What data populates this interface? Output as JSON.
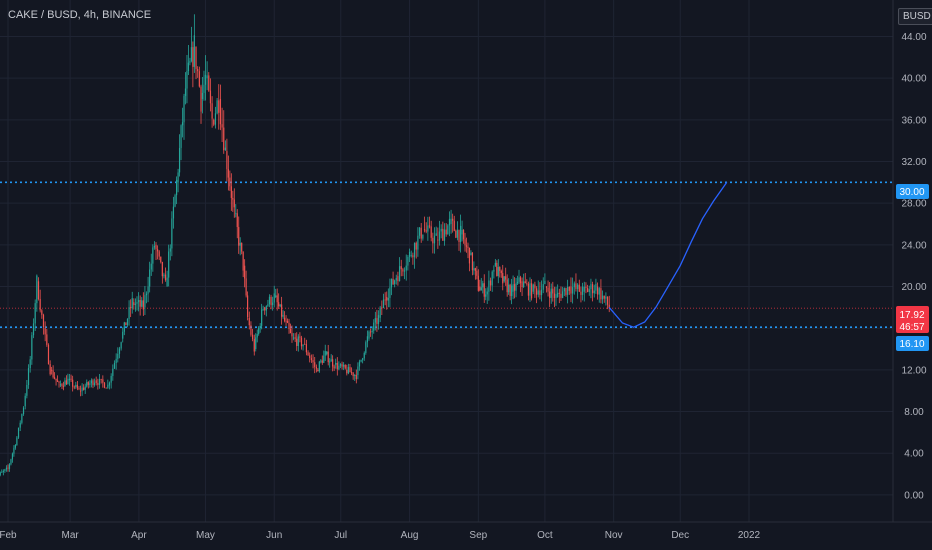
{
  "header": {
    "title": "CAKE / BUSD, 4h, BINANCE",
    "currency_button": "BUSD"
  },
  "price_labels": {
    "last_price": "17.92",
    "countdown": "46:57",
    "resistance": "30.00",
    "support": "16.10"
  },
  "colors": {
    "background": "#131722",
    "grid": "#1f2433",
    "up_candle": "#26a69a",
    "down_candle": "#ef5350",
    "horizontal_line": "#2196f3",
    "projection_curve": "#2962ff",
    "last_price": "#f23645"
  },
  "chart_data": {
    "type": "line",
    "title": "CAKE / BUSD, 4h, BINANCE",
    "xlabel": "",
    "ylabel": "",
    "y_ticks": [
      0,
      4,
      8,
      12,
      16,
      20,
      24,
      28,
      32,
      36,
      40,
      44
    ],
    "y_tick_labels": [
      "0.00",
      "4.00",
      "8.00",
      "12.00",
      "16.00",
      "20.00",
      "24.00",
      "28.00",
      "32.00",
      "36.00",
      "40.00",
      "44.00"
    ],
    "ylim": [
      -2.6,
      47.5
    ],
    "x_labels": [
      "Feb",
      "Mar",
      "Apr",
      "May",
      "Jun",
      "Jul",
      "Aug",
      "Sep",
      "Oct",
      "Nov",
      "Dec",
      "2022"
    ],
    "grid": true,
    "series": [
      {
        "name": "",
        "style": "candles",
        "x": [
          "2021-01-25",
          "2021-02-01",
          "2021-02-05",
          "2021-02-08",
          "2021-02-11",
          "2021-02-14",
          "2021-02-17",
          "2021-02-20",
          "2021-02-24",
          "2021-02-28",
          "2021-03-05",
          "2021-03-12",
          "2021-03-18",
          "2021-03-24",
          "2021-03-29",
          "2021-04-03",
          "2021-04-08",
          "2021-04-13",
          "2021-04-18",
          "2021-04-22",
          "2021-04-26",
          "2021-04-29",
          "2021-05-01",
          "2021-05-04",
          "2021-05-07",
          "2021-05-10",
          "2021-05-14",
          "2021-05-18",
          "2021-05-20",
          "2021-05-23",
          "2021-05-27",
          "2021-06-01",
          "2021-06-05",
          "2021-06-09",
          "2021-06-14",
          "2021-06-20",
          "2021-06-24",
          "2021-06-28",
          "2021-07-03",
          "2021-07-08",
          "2021-07-13",
          "2021-07-18",
          "2021-07-21",
          "2021-07-26",
          "2021-08-01",
          "2021-08-07",
          "2021-08-13",
          "2021-08-19",
          "2021-08-24",
          "2021-08-28",
          "2021-09-01",
          "2021-09-05",
          "2021-09-08",
          "2021-09-12",
          "2021-09-16",
          "2021-09-20",
          "2021-09-25",
          "2021-10-01",
          "2021-10-06",
          "2021-10-12",
          "2021-10-18",
          "2021-10-24",
          "2021-10-30"
        ],
        "y": [
          1.5,
          2.5,
          5.5,
          8.5,
          13,
          20.5,
          16,
          12,
          10.5,
          11,
          10,
          11,
          10.5,
          15,
          18.5,
          18,
          24,
          20,
          30,
          39,
          43,
          38,
          40,
          36,
          38,
          33,
          27,
          22,
          17,
          14,
          18,
          19,
          17,
          15,
          14.5,
          12,
          13.5,
          12.5,
          12,
          11.5,
          15,
          17,
          19,
          21,
          23,
          25.5,
          24.5,
          26,
          25,
          23,
          20,
          19.5,
          22,
          20.5,
          19.5,
          20.5,
          19.5,
          20,
          19,
          20,
          19.5,
          20,
          18
        ]
      },
      {
        "name": "",
        "style": "projection",
        "x": [
          "2021-10-30",
          "2021-11-05",
          "2021-11-10",
          "2021-11-15",
          "2021-11-20",
          "2021-11-25",
          "2021-12-01",
          "2021-12-06",
          "2021-12-11",
          "2021-12-16",
          "2021-12-22"
        ],
        "y": [
          18,
          16.5,
          16.1,
          16.6,
          18,
          19.8,
          22,
          24.3,
          26.5,
          28.2,
          30
        ]
      }
    ],
    "horizontal_levels": [
      30,
      16.1
    ],
    "last_price": 17.92
  }
}
